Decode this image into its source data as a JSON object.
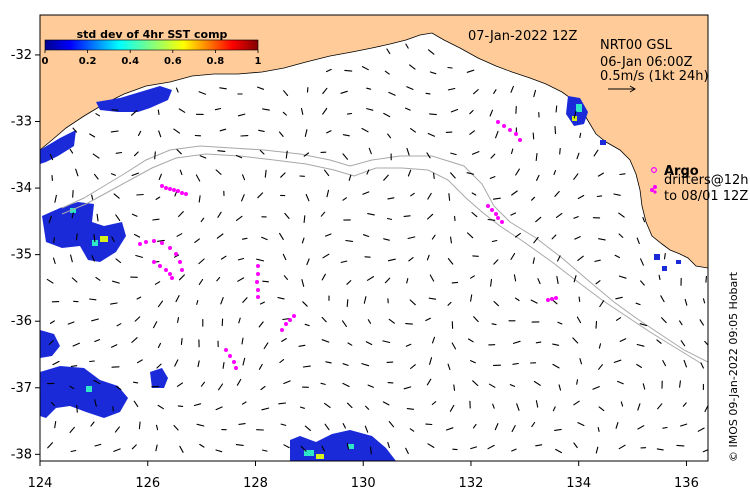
{
  "map": {
    "date_title": "07-Jan-2022 12Z",
    "model_name": "NRT00 GSL",
    "model_time": "06-Jan 06:00Z",
    "vector_scale": "0.5m/s (1kt 24h)",
    "credit": "© IMOS 09-Jan-2022 09:05 Hobart",
    "colors": {
      "land": "#ffcc99",
      "water": "#ffffff",
      "drifter": "#ff00ff"
    }
  },
  "colorbar": {
    "title": "std dev of 4hr SST comp",
    "ticks": [
      "0",
      "0.2",
      "0.4",
      "0.6",
      "0.8",
      "1"
    ],
    "range": [
      0,
      1
    ]
  },
  "legend": {
    "argo_label": "Argo",
    "drifters_line1": "drifters@12h",
    "drifters_line2": "to 08/01 12Z"
  },
  "axes": {
    "x_ticks": [
      "124",
      "126",
      "128",
      "130",
      "132",
      "134",
      "136"
    ],
    "y_ticks": [
      "-32",
      "-33",
      "-34",
      "-35",
      "-36",
      "-37",
      "-38"
    ],
    "lon_range": [
      124,
      136.4
    ],
    "lat_range": [
      -38.1,
      -31.4
    ]
  }
}
